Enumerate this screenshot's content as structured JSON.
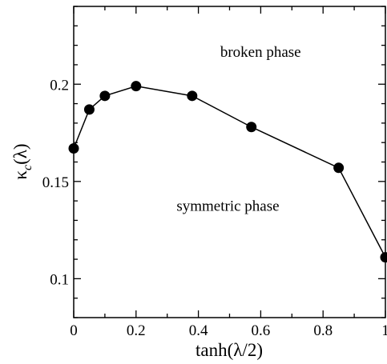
{
  "chart_data": {
    "type": "line",
    "xlabel": "tanh(λ/2)",
    "ylabel_main": "κ",
    "ylabel_sub": "c",
    "ylabel_tail": "(λ)",
    "xlim": [
      0,
      1
    ],
    "ylim": [
      0.08,
      0.24
    ],
    "xticks": [
      0,
      0.2,
      0.4,
      0.6,
      0.8,
      1
    ],
    "xtick_labels": [
      "0",
      "0.2",
      "0.4",
      "0.6",
      "0.8",
      "1"
    ],
    "yticks": [
      0.1,
      0.15,
      0.2
    ],
    "ytick_labels": [
      "0.1",
      "0.15",
      "0.2"
    ],
    "grid": false,
    "series": [
      {
        "x": [
          0,
          0.05,
          0.1,
          0.2,
          0.38,
          0.57,
          0.85,
          1.0
        ],
        "y": [
          0.167,
          0.187,
          0.194,
          0.199,
          0.194,
          0.178,
          0.157,
          0.111
        ],
        "color": "#000000",
        "marker": "circle"
      }
    ],
    "annotations": [
      {
        "text": "broken phase",
        "x": 0.47,
        "y": 0.214
      },
      {
        "text": "symmetric phase",
        "x": 0.33,
        "y": 0.135
      }
    ]
  }
}
